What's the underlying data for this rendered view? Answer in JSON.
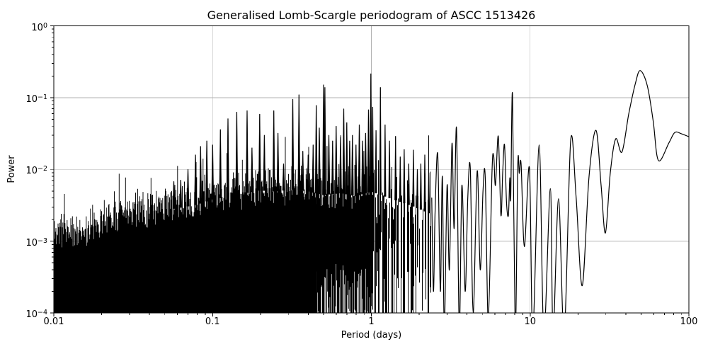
{
  "chart_data": {
    "type": "line",
    "title": "Generalised Lomb-Scargle periodogram of ASCC 1513426",
    "xlabel": "Period (days)",
    "ylabel": "Power",
    "xscale": "log",
    "yscale": "log",
    "xlim": [
      0.01,
      100
    ],
    "ylim": [
      0.0001,
      1
    ],
    "grid": true,
    "legend": false,
    "series_color": "#000000",
    "grid_color": "#b0b0b0",
    "background_color": "#ffffff",
    "x_ticks": [
      {
        "value": 0.01,
        "label": "0.01"
      },
      {
        "value": 0.1,
        "label": "0.1"
      },
      {
        "value": 1,
        "label": "1"
      },
      {
        "value": 10,
        "label": "10"
      },
      {
        "value": 100,
        "label": "100"
      }
    ],
    "y_ticks": [
      {
        "value": 1,
        "mantissa": "10",
        "exponent": "0"
      },
      {
        "value": 0.1,
        "mantissa": "10",
        "exponent": "−1"
      },
      {
        "value": 0.01,
        "mantissa": "10",
        "exponent": "−2"
      },
      {
        "value": 0.001,
        "mantissa": "10",
        "exponent": "−3"
      },
      {
        "value": 0.0001,
        "mantissa": "10",
        "exponent": "−4"
      }
    ],
    "dense_region": {
      "comment": "Unresolved noisy periodogram mass; envelope of the solid black fill, [period_days, power]",
      "period_range": [
        0.01,
        2.38
      ],
      "envelope": [
        [
          0.01,
          0.0014
        ],
        [
          0.012,
          0.0016
        ],
        [
          0.014,
          0.0013
        ],
        [
          0.017,
          0.0016
        ],
        [
          0.02,
          0.0022
        ],
        [
          0.025,
          0.0024
        ],
        [
          0.03,
          0.0028
        ],
        [
          0.04,
          0.003
        ],
        [
          0.05,
          0.0032
        ],
        [
          0.065,
          0.0035
        ],
        [
          0.08,
          0.0038
        ],
        [
          0.1,
          0.0045
        ],
        [
          0.13,
          0.005
        ],
        [
          0.16,
          0.0055
        ],
        [
          0.2,
          0.006
        ],
        [
          0.25,
          0.0058
        ],
        [
          0.32,
          0.0062
        ],
        [
          0.4,
          0.0058
        ],
        [
          0.5,
          0.0052
        ],
        [
          0.65,
          0.0055
        ],
        [
          0.8,
          0.005
        ],
        [
          1.0,
          0.0058
        ],
        [
          1.2,
          0.005
        ],
        [
          1.5,
          0.0042
        ],
        [
          1.9,
          0.0035
        ],
        [
          2.38,
          0.0028
        ]
      ]
    },
    "peaks": [
      [
        0.057,
        0.0068
      ],
      [
        0.063,
        0.0071
      ],
      [
        0.07,
        0.01
      ],
      [
        0.078,
        0.016
      ],
      [
        0.084,
        0.021
      ],
      [
        0.092,
        0.025
      ],
      [
        0.1,
        0.022
      ],
      [
        0.112,
        0.036
      ],
      [
        0.125,
        0.051
      ],
      [
        0.142,
        0.063
      ],
      [
        0.165,
        0.066
      ],
      [
        0.177,
        0.02
      ],
      [
        0.198,
        0.059
      ],
      [
        0.212,
        0.03
      ],
      [
        0.243,
        0.066
      ],
      [
        0.258,
        0.032
      ],
      [
        0.28,
        0.012
      ],
      [
        0.32,
        0.095
      ],
      [
        0.35,
        0.11
      ],
      [
        0.37,
        0.018
      ],
      [
        0.4,
        0.016
      ],
      [
        0.43,
        0.022
      ],
      [
        0.45,
        0.078
      ],
      [
        0.47,
        0.038
      ],
      [
        0.5,
        0.151
      ],
      [
        0.51,
        0.139
      ],
      [
        0.54,
        0.03
      ],
      [
        0.57,
        0.025
      ],
      [
        0.6,
        0.04
      ],
      [
        0.64,
        0.028
      ],
      [
        0.67,
        0.07
      ],
      [
        0.7,
        0.045
      ],
      [
        0.73,
        0.025
      ],
      [
        0.76,
        0.03
      ],
      [
        0.8,
        0.022
      ],
      [
        0.84,
        0.042
      ],
      [
        0.88,
        0.025
      ],
      [
        0.92,
        0.032
      ],
      [
        0.96,
        0.068
      ],
      [
        0.993,
        0.216
      ],
      [
        1.02,
        0.074
      ],
      [
        1.07,
        0.035
      ],
      [
        1.14,
        0.139
      ],
      [
        1.22,
        0.042
      ],
      [
        1.3,
        0.025
      ],
      [
        1.42,
        0.029
      ],
      [
        1.52,
        0.015
      ],
      [
        1.61,
        0.019
      ],
      [
        1.72,
        0.012
      ],
      [
        1.84,
        0.0187
      ],
      [
        1.95,
        0.01
      ],
      [
        2.05,
        0.012
      ],
      [
        2.17,
        0.016
      ],
      [
        2.3,
        0.009
      ]
    ],
    "resolved_curve": [
      [
        2.4,
        0.004
      ],
      [
        2.46,
        0.0002
      ],
      [
        2.52,
        0.0025
      ],
      [
        2.62,
        0.016
      ],
      [
        2.72,
        0.0002
      ],
      [
        2.8,
        0.008
      ],
      [
        2.88,
        6e-05
      ],
      [
        3.0,
        0.006
      ],
      [
        3.1,
        0.0004
      ],
      [
        3.22,
        0.023
      ],
      [
        3.32,
        0.0015
      ],
      [
        3.44,
        0.037
      ],
      [
        3.58,
        6e-05
      ],
      [
        3.72,
        0.006
      ],
      [
        3.9,
        0.0002
      ],
      [
        4.05,
        0.004
      ],
      [
        4.2,
        0.0102
      ],
      [
        4.38,
        0.0001
      ],
      [
        4.64,
        0.0095
      ],
      [
        4.85,
        0.0004
      ],
      [
        5.05,
        0.005
      ],
      [
        5.22,
        0.0076
      ],
      [
        5.45,
        8e-05
      ],
      [
        5.75,
        0.009
      ],
      [
        5.9,
        0.0151
      ],
      [
        6.05,
        0.006
      ],
      [
        6.3,
        0.029
      ],
      [
        6.55,
        0.0023
      ],
      [
        6.72,
        0.009
      ],
      [
        6.9,
        0.022
      ],
      [
        7.1,
        0.0035
      ],
      [
        7.3,
        0.0023
      ],
      [
        7.45,
        0.0076
      ],
      [
        7.55,
        0.004
      ],
      [
        7.75,
        0.107
      ],
      [
        8.06,
        5e-05
      ],
      [
        8.36,
        0.0113
      ],
      [
        8.55,
        0.0088
      ],
      [
        8.77,
        0.0119
      ],
      [
        9.2,
        0.00084
      ],
      [
        9.9,
        0.0104
      ],
      [
        10.4,
        5e-05
      ],
      [
        11.4,
        0.0219
      ],
      [
        12.2,
        5e-05
      ],
      [
        13.4,
        0.0054
      ],
      [
        13.95,
        5e-05
      ],
      [
        15.1,
        0.0039
      ],
      [
        16.4,
        5e-05
      ],
      [
        18.0,
        0.025
      ],
      [
        19.5,
        0.004
      ],
      [
        21.3,
        0.00024
      ],
      [
        23.5,
        0.008
      ],
      [
        26.0,
        0.035
      ],
      [
        28.0,
        0.006
      ],
      [
        29.8,
        0.0013
      ],
      [
        32.0,
        0.009
      ],
      [
        34.6,
        0.0266
      ],
      [
        37.9,
        0.0175
      ],
      [
        41.8,
        0.059
      ],
      [
        46.0,
        0.157
      ],
      [
        49.4,
        0.238
      ],
      [
        54.7,
        0.147
      ],
      [
        59.6,
        0.047
      ],
      [
        64.3,
        0.0133
      ],
      [
        75.0,
        0.0236
      ],
      [
        81.5,
        0.0327
      ],
      [
        89.7,
        0.0314
      ],
      [
        100.0,
        0.0285
      ]
    ],
    "noise": {
      "seed": 11
    }
  }
}
